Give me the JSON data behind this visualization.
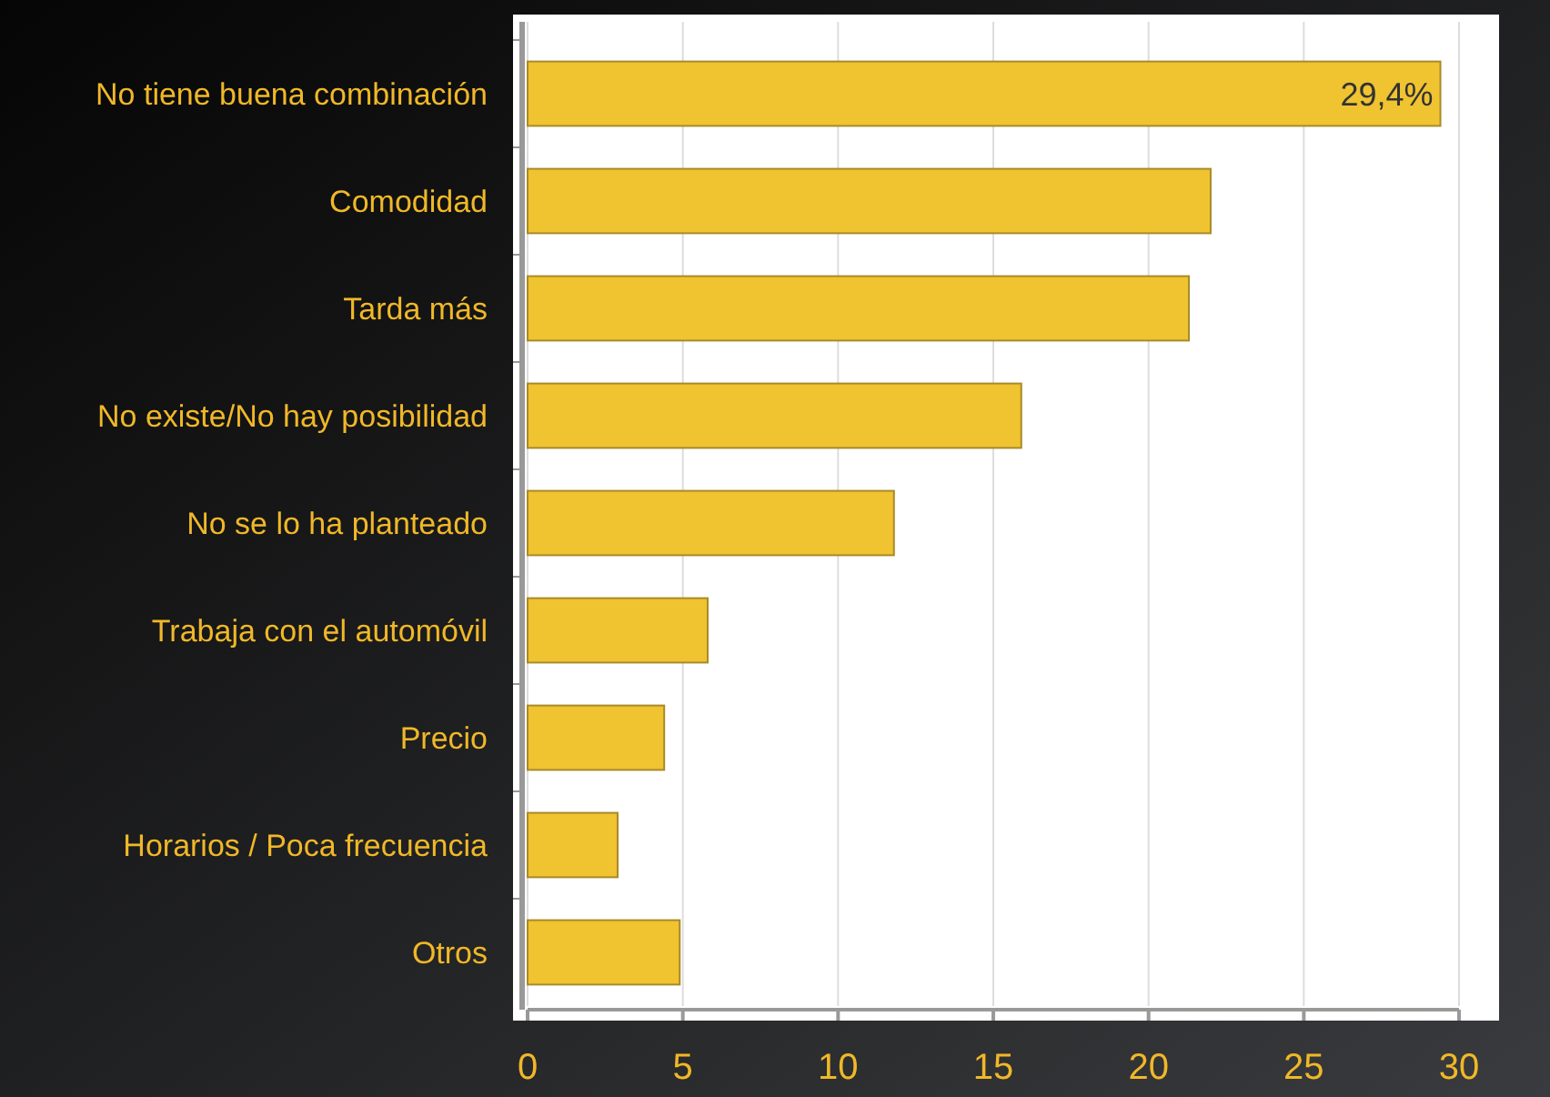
{
  "chart_data": {
    "type": "bar",
    "orientation": "horizontal",
    "categories": [
      "No tiene buena combinación",
      "Comodidad",
      "Tarda más",
      "No existe/No hay posibilidad",
      "No se lo ha planteado",
      "Trabaja con el automóvil",
      "Precio",
      "Horarios / Poca frecuencia",
      "Otros"
    ],
    "values": [
      29.4,
      22,
      21.3,
      15.9,
      11.8,
      5.8,
      4.4,
      2.9,
      4.9
    ],
    "value_labels": [
      "29,4%",
      null,
      null,
      null,
      null,
      null,
      null,
      null,
      null
    ],
    "color": "#f0c330",
    "xlim": [
      0,
      30
    ],
    "xticks": [
      0,
      5,
      10,
      15,
      20,
      25,
      30
    ],
    "grid": "x"
  }
}
